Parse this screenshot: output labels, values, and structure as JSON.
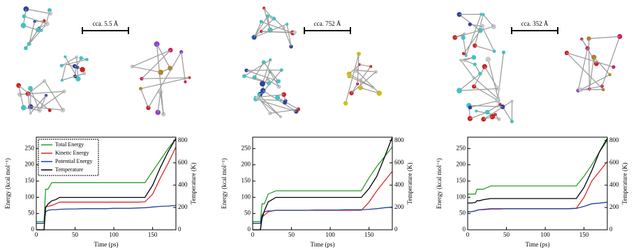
{
  "chart_data": [
    {
      "type": "line",
      "annotation": "cca. 5.5 Å",
      "x_label": "Time (ps)",
      "y_label": "Energy (kcal mol⁻¹)",
      "y2_label": "Temperature (K)",
      "xlim": [
        0,
        180
      ],
      "xticks": [
        0,
        50,
        100,
        150
      ],
      "ylim": [
        0,
        285
      ],
      "yticks": [
        0,
        50,
        100,
        150,
        200,
        250
      ],
      "y2lim": [
        0,
        830
      ],
      "y2ticks": [
        0,
        200,
        400,
        600,
        800
      ],
      "legend": "upper left",
      "x": [
        0,
        5,
        10,
        12,
        15,
        20,
        25,
        30,
        40,
        50,
        60,
        70,
        80,
        90,
        100,
        110,
        120,
        130,
        140,
        150,
        160,
        170,
        180
      ],
      "series": [
        {
          "name": "Total Energy",
          "color": "#2e9a2e",
          "values": [
            25,
            25,
            25,
            125,
            125,
            145,
            145,
            145,
            145,
            145,
            145,
            145,
            145,
            145,
            145,
            145,
            145,
            145,
            145,
            180,
            215,
            250,
            280
          ]
        },
        {
          "name": "Kinetic Energy",
          "color": "#e02828",
          "values": [
            0,
            0,
            0,
            70,
            72,
            75,
            80,
            85,
            85,
            85,
            85,
            85,
            85,
            85,
            85,
            85,
            85,
            85,
            86,
            110,
            160,
            205,
            255
          ]
        },
        {
          "name": "Potential Energy",
          "color": "#2040a0",
          "values": [
            20,
            20,
            20,
            55,
            60,
            62,
            62,
            63,
            64,
            64,
            65,
            65,
            65,
            65,
            66,
            66,
            66,
            67,
            68,
            70,
            72,
            73,
            75
          ]
        },
        {
          "name": "Temperature",
          "color": "#000000",
          "axis": "y2",
          "values": [
            0,
            0,
            0,
            200,
            230,
            260,
            270,
            290,
            290,
            290,
            290,
            290,
            290,
            290,
            290,
            290,
            290,
            290,
            290,
            400,
            560,
            700,
            820
          ]
        }
      ]
    },
    {
      "type": "line",
      "annotation": "cca. 752 Å",
      "x_label": "Time (ps)",
      "y_label": "Energy (kcal mol⁻¹)",
      "y2_label": "Temperature (K)",
      "xlim": [
        0,
        180
      ],
      "xticks": [
        0,
        50,
        100,
        150
      ],
      "ylim": [
        0,
        285
      ],
      "yticks": [
        0,
        50,
        100,
        150,
        200,
        250
      ],
      "y2lim": [
        0,
        830
      ],
      "y2ticks": [
        0,
        200,
        400,
        600,
        800
      ],
      "x": [
        0,
        5,
        10,
        12,
        15,
        20,
        25,
        30,
        40,
        50,
        60,
        70,
        80,
        90,
        100,
        110,
        120,
        130,
        140,
        150,
        160,
        170,
        180
      ],
      "series": [
        {
          "color": "#2e9a2e",
          "values": [
            25,
            25,
            25,
            80,
            80,
            110,
            115,
            120,
            120,
            120,
            120,
            120,
            120,
            120,
            120,
            120,
            120,
            120,
            120,
            160,
            195,
            225,
            255
          ]
        },
        {
          "color": "#e02828",
          "values": [
            0,
            0,
            0,
            40,
            45,
            55,
            58,
            60,
            60,
            60,
            60,
            60,
            60,
            60,
            60,
            60,
            60,
            60,
            60,
            85,
            120,
            150,
            180
          ]
        },
        {
          "color": "#2040a0",
          "values": [
            20,
            20,
            20,
            45,
            55,
            58,
            58,
            60,
            60,
            60,
            60,
            60,
            61,
            61,
            61,
            61,
            62,
            62,
            62,
            63,
            65,
            68,
            70
          ]
        },
        {
          "color": "#000000",
          "axis": "y2",
          "values": [
            0,
            0,
            0,
            100,
            170,
            250,
            270,
            290,
            290,
            290,
            290,
            290,
            290,
            290,
            290,
            290,
            290,
            290,
            290,
            370,
            480,
            650,
            830
          ]
        }
      ]
    },
    {
      "type": "line",
      "annotation": "cca. 352 Å",
      "x_label": "Time (ps)",
      "y_label": "Energy (kcal mol⁻¹)",
      "y2_label": "Temperature (K)",
      "xlim": [
        0,
        180
      ],
      "xticks": [
        0,
        50,
        100,
        150
      ],
      "ylim": [
        0,
        285
      ],
      "yticks": [
        0,
        50,
        100,
        150,
        200,
        250
      ],
      "y2lim": [
        0,
        830
      ],
      "y2ticks": [
        0,
        200,
        400,
        600,
        800
      ],
      "x": [
        0,
        5,
        10,
        12,
        15,
        20,
        25,
        30,
        40,
        50,
        60,
        70,
        80,
        90,
        100,
        110,
        120,
        130,
        140,
        150,
        160,
        170,
        180
      ],
      "series": [
        {
          "color": "#2e9a2e",
          "values": [
            110,
            110,
            110,
            125,
            125,
            125,
            130,
            135,
            135,
            135,
            135,
            135,
            135,
            135,
            135,
            135,
            135,
            135,
            135,
            165,
            200,
            240,
            275
          ]
        },
        {
          "color": "#e02828",
          "values": [
            55,
            56,
            58,
            60,
            62,
            63,
            64,
            65,
            65,
            65,
            65,
            65,
            65,
            65,
            65,
            65,
            65,
            65,
            66,
            100,
            150,
            180,
            210
          ]
        },
        {
          "color": "#2040a0",
          "values": [
            55,
            56,
            58,
            60,
            62,
            62,
            63,
            64,
            64,
            65,
            65,
            65,
            65,
            65,
            65,
            65,
            65,
            65,
            66,
            72,
            80,
            82,
            85
          ]
        },
        {
          "color": "#000000",
          "axis": "y2",
          "values": [
            240,
            240,
            245,
            260,
            260,
            270,
            275,
            280,
            280,
            280,
            280,
            280,
            280,
            280,
            280,
            280,
            280,
            280,
            280,
            380,
            530,
            700,
            820
          ]
        }
      ]
    }
  ]
}
